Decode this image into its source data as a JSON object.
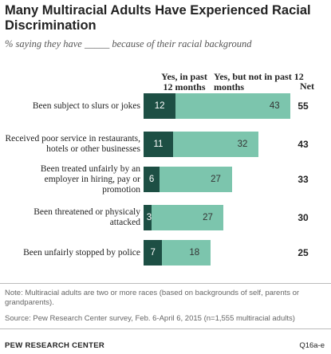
{
  "title": "Many Multiracial Adults Have Experienced Racial Discrimination",
  "subtitle": "% saying they have _____ because of their racial background",
  "chart_data": {
    "type": "bar",
    "stacked": true,
    "orientation": "horizontal",
    "categories": [
      "Been subject to slurs or jokes",
      "Received poor service in restaurants, hotels or other businesses",
      "Been treated unfairly by an employer in hiring, pay or promotion",
      "Been threatened or physicaly attacked",
      "Been unfairly stopped by police"
    ],
    "series": [
      {
        "name": "Yes, in past 12 months",
        "values": [
          12,
          11,
          6,
          3,
          7
        ],
        "color": "#1d4f44"
      },
      {
        "name": "Yes, but not in past 12 months",
        "values": [
          43,
          32,
          27,
          27,
          18
        ],
        "color": "#7cc5ad"
      }
    ],
    "net_label": "Net",
    "net": [
      55,
      43,
      33,
      30,
      25
    ],
    "grid": false
  },
  "notes": {
    "note": "Note: Multiracial adults are two or more races (based on backgrounds of self, parents or grandparents).",
    "source": "Source: Pew Research Center survey, Feb. 6-April 6, 2015 (n=1,555 multiracial adults)"
  },
  "footer": {
    "org": "PEW RESEARCH CENTER",
    "question_id": "Q16a-e"
  }
}
